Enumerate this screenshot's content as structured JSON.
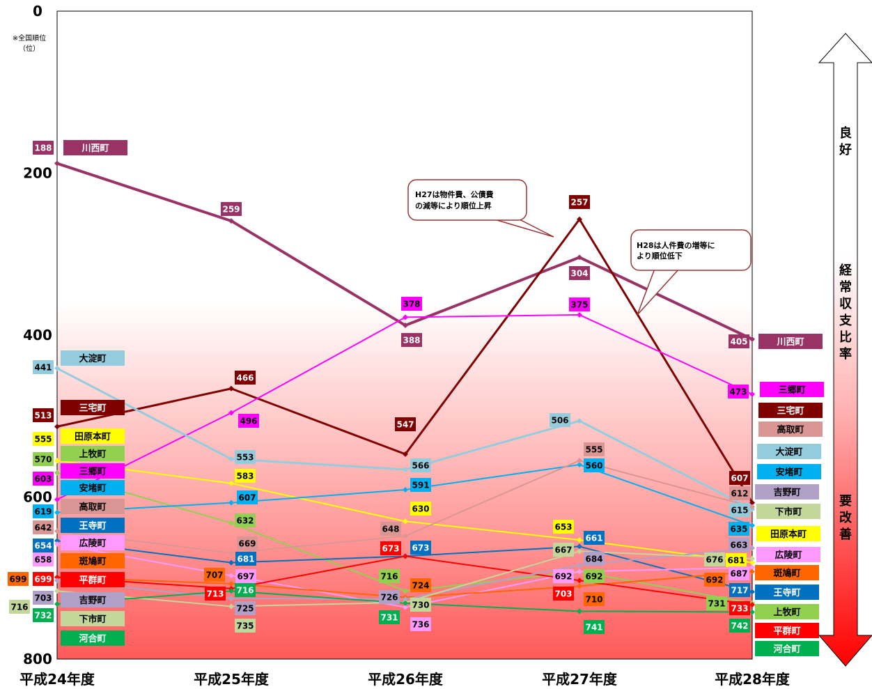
{
  "note_line1": "※全国順位",
  "note_line2": "（位）",
  "right_axis": {
    "top_label": "良好",
    "middle_label": "経常収支比率",
    "bottom_label": "要改善"
  },
  "callouts": [
    {
      "text_lines": [
        "H27は物件費、公債費",
        "の減等により順位上昇"
      ]
    },
    {
      "text_lines": [
        "H28は人件費の増等に",
        "より順位低下"
      ]
    }
  ],
  "chart_data": {
    "type": "line",
    "categories": [
      "平成24年度",
      "平成25年度",
      "平成26年度",
      "平成27年度",
      "平成28年度"
    ],
    "ylim": [
      0,
      800
    ],
    "y_inverted": true,
    "yticks": [
      "0",
      "200",
      "400",
      "600",
      "800"
    ],
    "series": [
      {
        "name": "川西町",
        "color": "#993366",
        "text_color": "#ffffff",
        "values": [
          188,
          259,
          388,
          304,
          405
        ],
        "left_label": true,
        "right_label": true,
        "width": 4
      },
      {
        "name": "三宅町",
        "color": "#800000",
        "text_color": "#ffffff",
        "values": [
          513,
          466,
          547,
          257,
          607
        ],
        "left_label": true,
        "right_label": true,
        "width": 3
      },
      {
        "name": "三郷町",
        "color": "#ff00ff",
        "text_color": "#000000",
        "values": [
          603,
          496,
          378,
          375,
          473
        ],
        "left_label": true,
        "right_label": true,
        "width": 2
      },
      {
        "name": "大淀町",
        "color": "#93cddd",
        "text_color": "#000000",
        "values": [
          441,
          553,
          566,
          506,
          615
        ],
        "left_label": true,
        "right_label": true,
        "width": 3
      },
      {
        "name": "田原本町",
        "color": "#ffff00",
        "text_color": "#000000",
        "values": [
          555,
          583,
          630,
          653,
          681
        ],
        "left_label": true,
        "right_label": true,
        "width": 2
      },
      {
        "name": "上牧町",
        "color": "#92d050",
        "text_color": "#000000",
        "values": [
          570,
          632,
          716,
          692,
          731
        ],
        "left_label": true,
        "right_label": true,
        "width": 2
      },
      {
        "name": "安堵町",
        "color": "#00b0f0",
        "text_color": "#000000",
        "values": [
          619,
          607,
          591,
          560,
          635
        ],
        "left_label": true,
        "right_label": true,
        "width": 2
      },
      {
        "name": "高取町",
        "color": "#da9694",
        "text_color": "#000000",
        "values": [
          642,
          669,
          648,
          555,
          612
        ],
        "left_label": true,
        "right_label": true,
        "width": 2
      },
      {
        "name": "王寺町",
        "color": "#0070c0",
        "text_color": "#ffffff",
        "values": [
          654,
          681,
          673,
          661,
          717
        ],
        "left_label": true,
        "right_label": true,
        "width": 2
      },
      {
        "name": "広陵町",
        "color": "#ff99ff",
        "text_color": "#000000",
        "values": [
          658,
          697,
          736,
          692,
          687
        ],
        "left_label": true,
        "right_label": true,
        "width": 2
      },
      {
        "name": "斑鳩町",
        "color": "#ff6600",
        "text_color": "#000000",
        "values": [
          699,
          707,
          724,
          710,
          692
        ],
        "left_label": true,
        "right_label": true,
        "width": 2
      },
      {
        "name": "平群町",
        "color": "#ff0000",
        "text_color": "#ffffff",
        "values": [
          699,
          713,
          673,
          703,
          733
        ],
        "left_label": true,
        "right_label": true,
        "width": 2
      },
      {
        "name": "吉野町",
        "color": "#b1a0c7",
        "text_color": "#000000",
        "values": [
          703,
          725,
          726,
          684,
          663
        ],
        "left_label": true,
        "right_label": true,
        "width": 2
      },
      {
        "name": "下市町",
        "color": "#c4d79b",
        "text_color": "#000000",
        "values": [
          716,
          735,
          730,
          667,
          676
        ],
        "left_label": true,
        "right_label": true,
        "width": 2
      },
      {
        "name": "河合町",
        "color": "#00b050",
        "text_color": "#ffffff",
        "values": [
          732,
          716,
          731,
          741,
          742
        ],
        "left_label": true,
        "right_label": true,
        "width": 2
      }
    ]
  }
}
